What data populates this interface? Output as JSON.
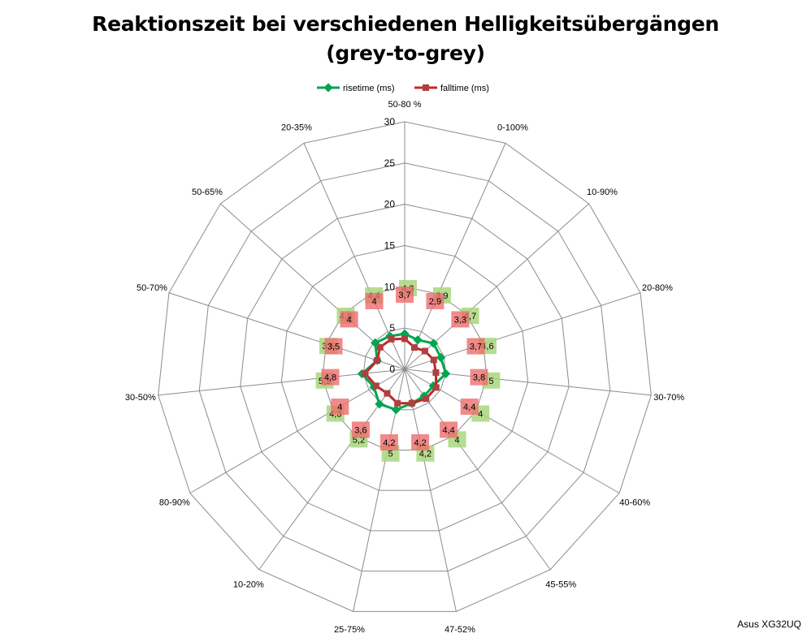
{
  "chart_data": {
    "type": "radar",
    "title_line1": "Reaktionszeit bei verschiedenen Helligkeitsübergängen",
    "title_line2": "(grey-to-grey)",
    "categories": [
      "50-80 %",
      "0-100%",
      "10-90%",
      "20-80%",
      "30-70%",
      "40-60%",
      "45-55%",
      "47-52%",
      "25-75%",
      "10-20%",
      "80-90%",
      "30-50%",
      "50-70%",
      "50-65%",
      "20-35%"
    ],
    "axis": {
      "min": 0,
      "max": 30,
      "ticks": [
        0,
        5,
        10,
        15,
        20,
        25,
        30
      ]
    },
    "legend_position": "top",
    "series": [
      {
        "name": "risetime (ms)",
        "color": "#00a550",
        "values": [
          4.3,
          3.9,
          4.7,
          4.6,
          5.0,
          4.0,
          4.0,
          4.2,
          5.0,
          5.2,
          4.3,
          5.2,
          3.5,
          4.8,
          4.4
        ],
        "labels": [
          "4,3",
          "3,9",
          "4,7",
          "4,6",
          "5",
          "4",
          "4",
          "4,2",
          "5",
          "5,2",
          "4,3",
          "5,2",
          "3,5",
          "4,8",
          "4,4"
        ]
      },
      {
        "name": "falltime (ms)",
        "color": "#c0282a",
        "values": [
          3.7,
          2.9,
          3.3,
          3.7,
          3.8,
          4.4,
          4.4,
          4.2,
          4.2,
          3.6,
          4.0,
          4.8,
          3.5,
          4.0,
          4.0
        ],
        "labels": [
          "3,7",
          "2,9",
          "3,3",
          "3,7",
          "3,8",
          "4,4",
          "4,4",
          "4,2",
          "4,2",
          "3,6",
          "4",
          "4,8",
          "3,5",
          "4",
          "4"
        ]
      }
    ]
  },
  "watermark": "Asus XG32UQ"
}
